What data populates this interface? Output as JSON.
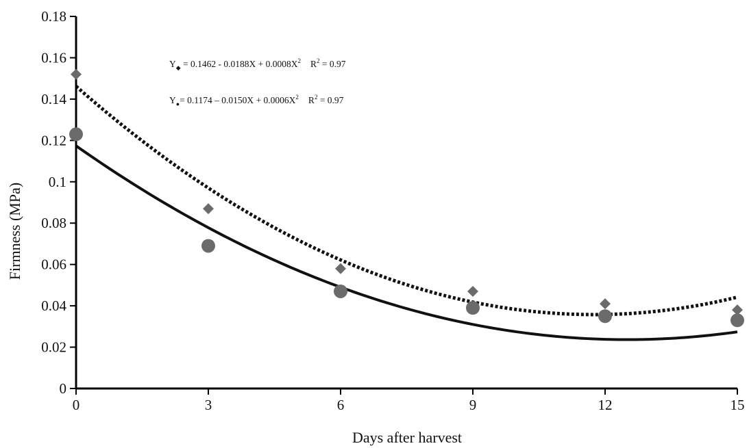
{
  "chart_data": {
    "type": "scatter",
    "xlabel": "Days after harvest",
    "ylabel": "Firmness (MPa)",
    "xlim": [
      0,
      15
    ],
    "ylim": [
      0,
      0.18
    ],
    "x_ticks": [
      0,
      3,
      6,
      9,
      12,
      15
    ],
    "x_tick_labels": [
      "0",
      "3",
      "6",
      "9",
      "12",
      "15"
    ],
    "y_ticks": [
      0,
      0.02,
      0.04,
      0.06,
      0.08,
      0.1,
      0.12,
      0.14,
      0.16,
      0.18
    ],
    "y_tick_labels": [
      "0",
      "0.02",
      "0.04",
      "0.06",
      "0.08",
      "0.1",
      "0.12",
      "0.14",
      "0.16",
      "0.18"
    ],
    "grid": false,
    "series": [
      {
        "marker": "diamond",
        "color": "#6b6b6b",
        "x": [
          0,
          3,
          6,
          9,
          12,
          15
        ],
        "y": [
          0.152,
          0.087,
          0.058,
          0.047,
          0.041,
          0.038
        ],
        "fit": {
          "style": "dotted",
          "coefficients": [
            0.1462,
            -0.0188,
            0.0008
          ],
          "equation": {
            "lead": "Y",
            "sub_symbol": "◆",
            "body": " = 0.1462 - 0.0188X + 0.0008X",
            "exponent": "2",
            "r2_lead": "R",
            "r2_exponent": "2",
            "r2_value": " = 0.97"
          }
        }
      },
      {
        "marker": "circle",
        "color": "#6b6b6b",
        "x": [
          0,
          3,
          6,
          9,
          12,
          15
        ],
        "y": [
          0.123,
          0.069,
          0.047,
          0.039,
          0.035,
          0.033
        ],
        "fit": {
          "style": "solid",
          "coefficients": [
            0.1174,
            -0.015,
            0.0006
          ],
          "equation": {
            "lead": "Y",
            "sub_symbol": "●",
            "body": "= 0.1174 – 0.0150X + 0.0006X",
            "exponent": "2",
            "r2_lead": "R",
            "r2_exponent": "2",
            "r2_value": " = 0.97"
          }
        }
      }
    ]
  }
}
